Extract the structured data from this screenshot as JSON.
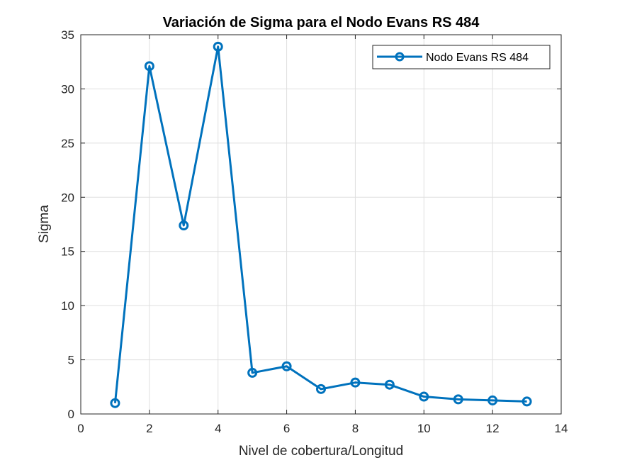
{
  "chart_data": {
    "type": "line",
    "title": "Variación de Sigma para el Nodo Evans RS 484",
    "xlabel": "Nivel de cobertura/Longitud",
    "ylabel": "Sigma",
    "xlim": [
      0,
      14
    ],
    "ylim": [
      0,
      35
    ],
    "xticks": [
      0,
      2,
      4,
      6,
      8,
      10,
      12,
      14
    ],
    "yticks": [
      0,
      5,
      10,
      15,
      20,
      25,
      30,
      35
    ],
    "grid": true,
    "legend_position": "top-right",
    "series": [
      {
        "name": "Nodo Evans RS 484",
        "color": "#0072BD",
        "marker": "circle",
        "x": [
          1,
          2,
          3,
          4,
          5,
          6,
          7,
          8,
          9,
          10,
          11,
          12,
          13
        ],
        "y": [
          1.0,
          32.1,
          17.4,
          33.9,
          3.8,
          4.4,
          2.3,
          2.9,
          2.7,
          1.6,
          1.35,
          1.25,
          1.15
        ]
      }
    ]
  }
}
